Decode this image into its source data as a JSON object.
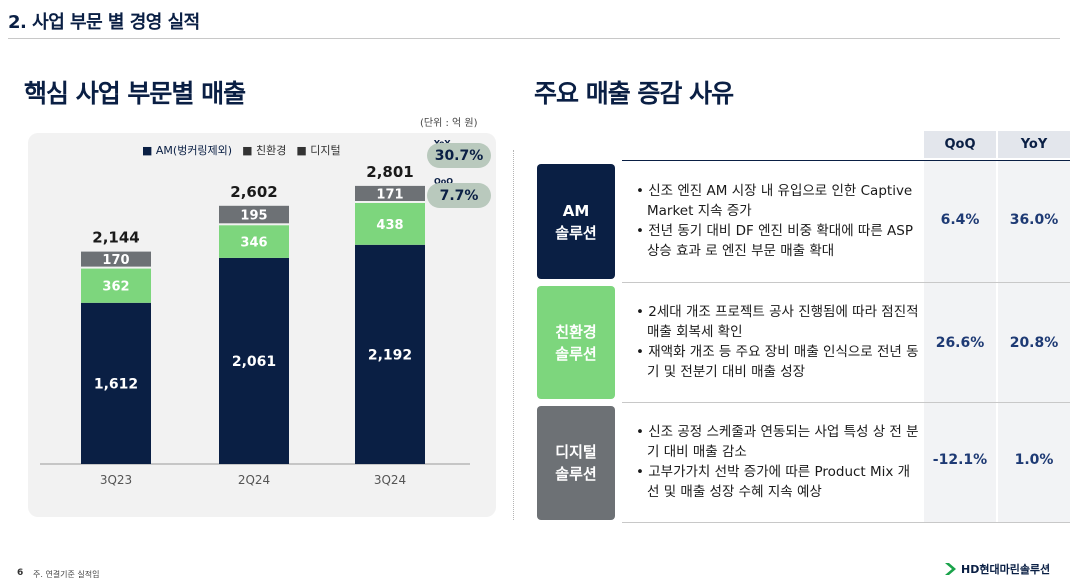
{
  "section_title": "2. 사업 부문 별 경영 실적",
  "left_heading": "핵심 사업 부문별 매출",
  "right_heading": "주요 매출 증감 사유",
  "unit_label": "(단위 : 억 원)",
  "legend": [
    {
      "label": "■ AM(벙커링제외)",
      "color": "#0a1f44"
    },
    {
      "label": "■ 친환경",
      "color": "#7dd67d"
    },
    {
      "label": "■ 디지털",
      "color": "#6d7175"
    }
  ],
  "badges": {
    "yoy_label": "YoY",
    "yoy_value": "30.7%",
    "qoq_label": "QoQ",
    "qoq_value": "7.7%"
  },
  "chart_data": {
    "type": "bar",
    "stacked": true,
    "categories": [
      "3Q23",
      "2Q24",
      "3Q24"
    ],
    "series": [
      {
        "name": "AM(벙커링제외)",
        "values": [
          1612,
          2061,
          2192
        ],
        "labels": [
          "1,612",
          "2,061",
          "2,192"
        ],
        "color": "#0a1f44"
      },
      {
        "name": "친환경",
        "values": [
          362,
          346,
          438
        ],
        "labels": [
          "362",
          "346",
          "438"
        ],
        "color": "#7dd67d"
      },
      {
        "name": "디지털",
        "values": [
          170,
          195,
          171
        ],
        "labels": [
          "170",
          "195",
          "171"
        ],
        "color": "#6d7175"
      }
    ],
    "totals": [
      2144,
      2602,
      2801
    ],
    "total_labels": [
      "2,144",
      "2,602",
      "2,801"
    ],
    "ylim": [
      0,
      3000
    ],
    "legend_position": "top"
  },
  "table": {
    "headers": {
      "qoq": "QoQ",
      "yoy": "YoY"
    },
    "rows": [
      {
        "segment_line1": "AM",
        "segment_line2": "솔루션",
        "color": "#0a1f44",
        "bullets": [
          "• 신조 엔진 AM 시장 내 유입으로 인한 Captive Market 지속 증가",
          "• 전년 동기 대비 DF 엔진 비중 확대에 따른 ASP 상승 효과 로 엔진 부문 매출 확대"
        ],
        "qoq": "6.4%",
        "yoy": "36.0%"
      },
      {
        "segment_line1": "친환경",
        "segment_line2": "솔루션",
        "color": "#7dd67d",
        "bullets": [
          "• 2세대 개조 프로젝트 공사 진행됨에 따라 점진적 매출 회복세 확인",
          "• 재액화 개조 등 주요 장비 매출 인식으로 전년 동기 및 전분기 대비 매출 성장"
        ],
        "qoq": "26.6%",
        "yoy": "20.8%"
      },
      {
        "segment_line1": "디지털",
        "segment_line2": "솔루션",
        "color": "#6d7175",
        "bullets": [
          "• 신조 공정 스케줄과 연동되는 사업 특성 상 전 분기 대비 매출 감소",
          "• 고부가가치 선박 증가에 따른 Product Mix 개선 및 매출 성장 수혜 지속 예상"
        ],
        "qoq": "-12.1%",
        "yoy": "1.0%"
      }
    ]
  },
  "footer": {
    "page_number": "6",
    "note": "주. 연결기준 실적임",
    "logo_text": "HD현대마린솔루션",
    "logo_icon": "chevron-logo-icon",
    "logo_color": "#1aa34a"
  }
}
